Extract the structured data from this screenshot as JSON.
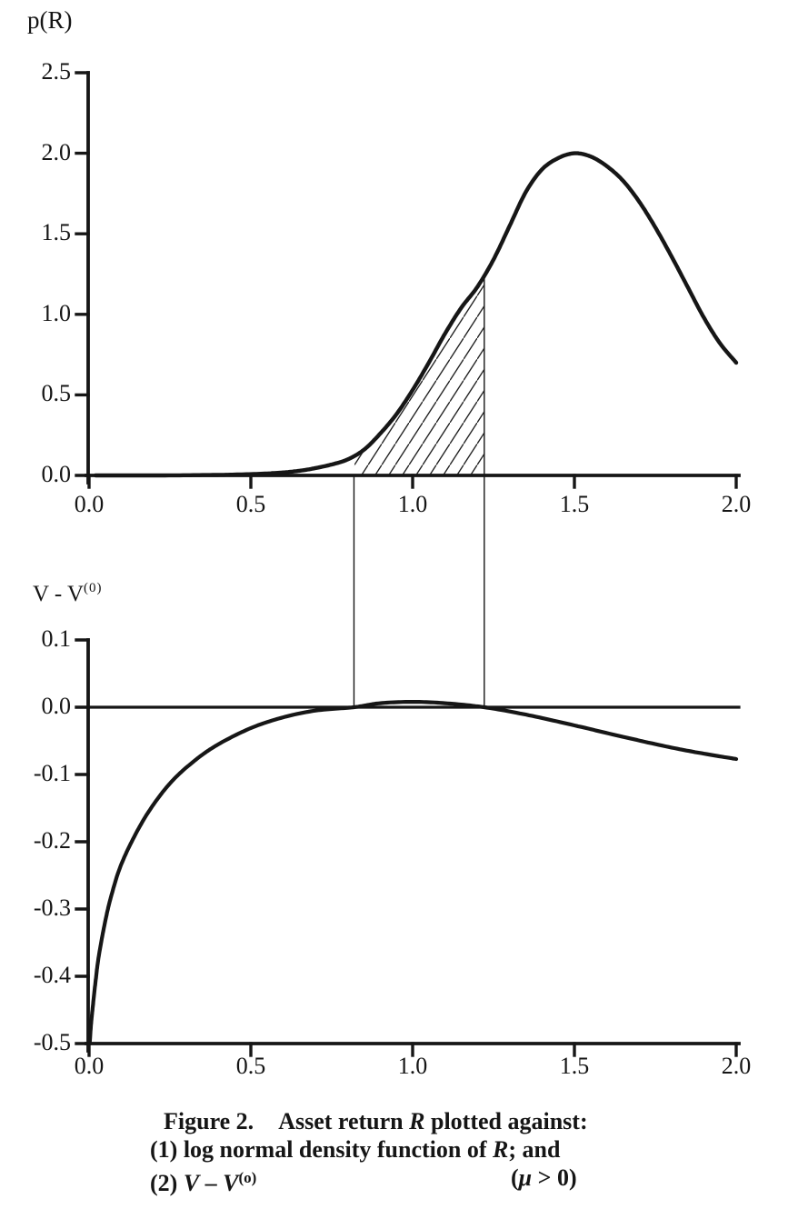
{
  "caption": {
    "fig_label": "Figure 2.",
    "line1_pre": "Asset return ",
    "line1_var": "R",
    "line1_post": " plotted against:",
    "line2_pre": "(1) log normal density function of ",
    "line2_var": "R",
    "line2_post": "; and",
    "line3_pre": "(2) ",
    "line3_var1": "V",
    "line3_dash": " – ",
    "line3_var2": "V",
    "line3_sup": "(o)",
    "cond_pre": "(",
    "cond_var": "μ",
    "cond_post": " > 0)"
  },
  "chart_data": [
    {
      "type": "line",
      "y_axis_title": "p(R)",
      "xlim": [
        0,
        2.0
      ],
      "ylim": [
        0,
        2.5
      ],
      "x_tick_values": [
        0.0,
        0.5,
        1.0,
        1.5,
        2.0
      ],
      "x_tick_labels": [
        "0.0",
        "0.5",
        "1.0",
        "1.5",
        "2.0"
      ],
      "y_tick_values": [
        2.5,
        2.0,
        1.5,
        1.0,
        0.5,
        0.0
      ],
      "y_tick_labels": [
        "2.5",
        "2.0",
        "1.5",
        "1.0",
        "0.5",
        "0.0"
      ],
      "hatched_area": {
        "x_from": 0.8187,
        "x_to": 1.2214,
        "style": "diagonal-hatch"
      },
      "series": [
        {
          "name": "log normal density function of R",
          "points": [
            [
              0.02,
              0.0
            ],
            [
              0.2,
              0.0
            ],
            [
              0.35,
              0.002
            ],
            [
              0.45,
              0.005
            ],
            [
              0.55,
              0.012
            ],
            [
              0.62,
              0.022
            ],
            [
              0.68,
              0.038
            ],
            [
              0.75,
              0.068
            ],
            [
              0.8,
              0.1
            ],
            [
              0.85,
              0.16
            ],
            [
              0.9,
              0.26
            ],
            [
              0.95,
              0.38
            ],
            [
              1.0,
              0.53
            ],
            [
              1.05,
              0.7
            ],
            [
              1.1,
              0.88
            ],
            [
              1.15,
              1.04
            ],
            [
              1.2,
              1.17
            ],
            [
              1.25,
              1.34
            ],
            [
              1.3,
              1.55
            ],
            [
              1.35,
              1.76
            ],
            [
              1.4,
              1.9
            ],
            [
              1.45,
              1.97
            ],
            [
              1.5,
              2.0
            ],
            [
              1.55,
              1.98
            ],
            [
              1.6,
              1.92
            ],
            [
              1.65,
              1.83
            ],
            [
              1.7,
              1.7
            ],
            [
              1.75,
              1.54
            ],
            [
              1.8,
              1.36
            ],
            [
              1.85,
              1.17
            ],
            [
              1.9,
              0.98
            ],
            [
              1.95,
              0.82
            ],
            [
              2.0,
              0.7
            ]
          ]
        }
      ]
    },
    {
      "type": "line",
      "y_axis_title_base": "V - V",
      "y_axis_title_sup": "(0)",
      "xlim": [
        0,
        2.0
      ],
      "ylim": [
        -0.5,
        0.1
      ],
      "zero_line": true,
      "vertical_guides_x": [
        0.8187,
        1.2214
      ],
      "x_tick_values": [
        0.0,
        0.5,
        1.0,
        1.5,
        2.0
      ],
      "x_tick_labels": [
        "0.0",
        "0.5",
        "1.0",
        "1.5",
        "2.0"
      ],
      "y_tick_values": [
        0.1,
        0.0,
        -0.1,
        -0.2,
        -0.3,
        -0.4,
        -0.5
      ],
      "y_tick_labels": [
        "0.1",
        "0.0",
        "-0.1",
        "-0.2",
        "-0.3",
        "-0.4",
        "-0.5"
      ],
      "series": [
        {
          "name": "V - V(0)",
          "points": [
            [
              0.002,
              -0.5
            ],
            [
              0.006,
              -0.472
            ],
            [
              0.012,
              -0.443
            ],
            [
              0.02,
              -0.408
            ],
            [
              0.03,
              -0.37
            ],
            [
              0.05,
              -0.318
            ],
            [
              0.07,
              -0.278
            ],
            [
              0.1,
              -0.233
            ],
            [
              0.15,
              -0.183
            ],
            [
              0.2,
              -0.144
            ],
            [
              0.26,
              -0.108
            ],
            [
              0.33,
              -0.078
            ],
            [
              0.4,
              -0.055
            ],
            [
              0.5,
              -0.031
            ],
            [
              0.6,
              -0.015
            ],
            [
              0.7,
              -0.005
            ],
            [
              0.8187,
              0.0
            ],
            [
              0.9,
              0.006
            ],
            [
              1.0,
              0.008
            ],
            [
              1.1,
              0.006
            ],
            [
              1.2214,
              0.0
            ],
            [
              1.35,
              -0.011
            ],
            [
              1.5,
              -0.027
            ],
            [
              1.65,
              -0.044
            ],
            [
              1.8,
              -0.06
            ],
            [
              1.9,
              -0.069
            ],
            [
              2.0,
              -0.077
            ]
          ]
        }
      ]
    }
  ]
}
